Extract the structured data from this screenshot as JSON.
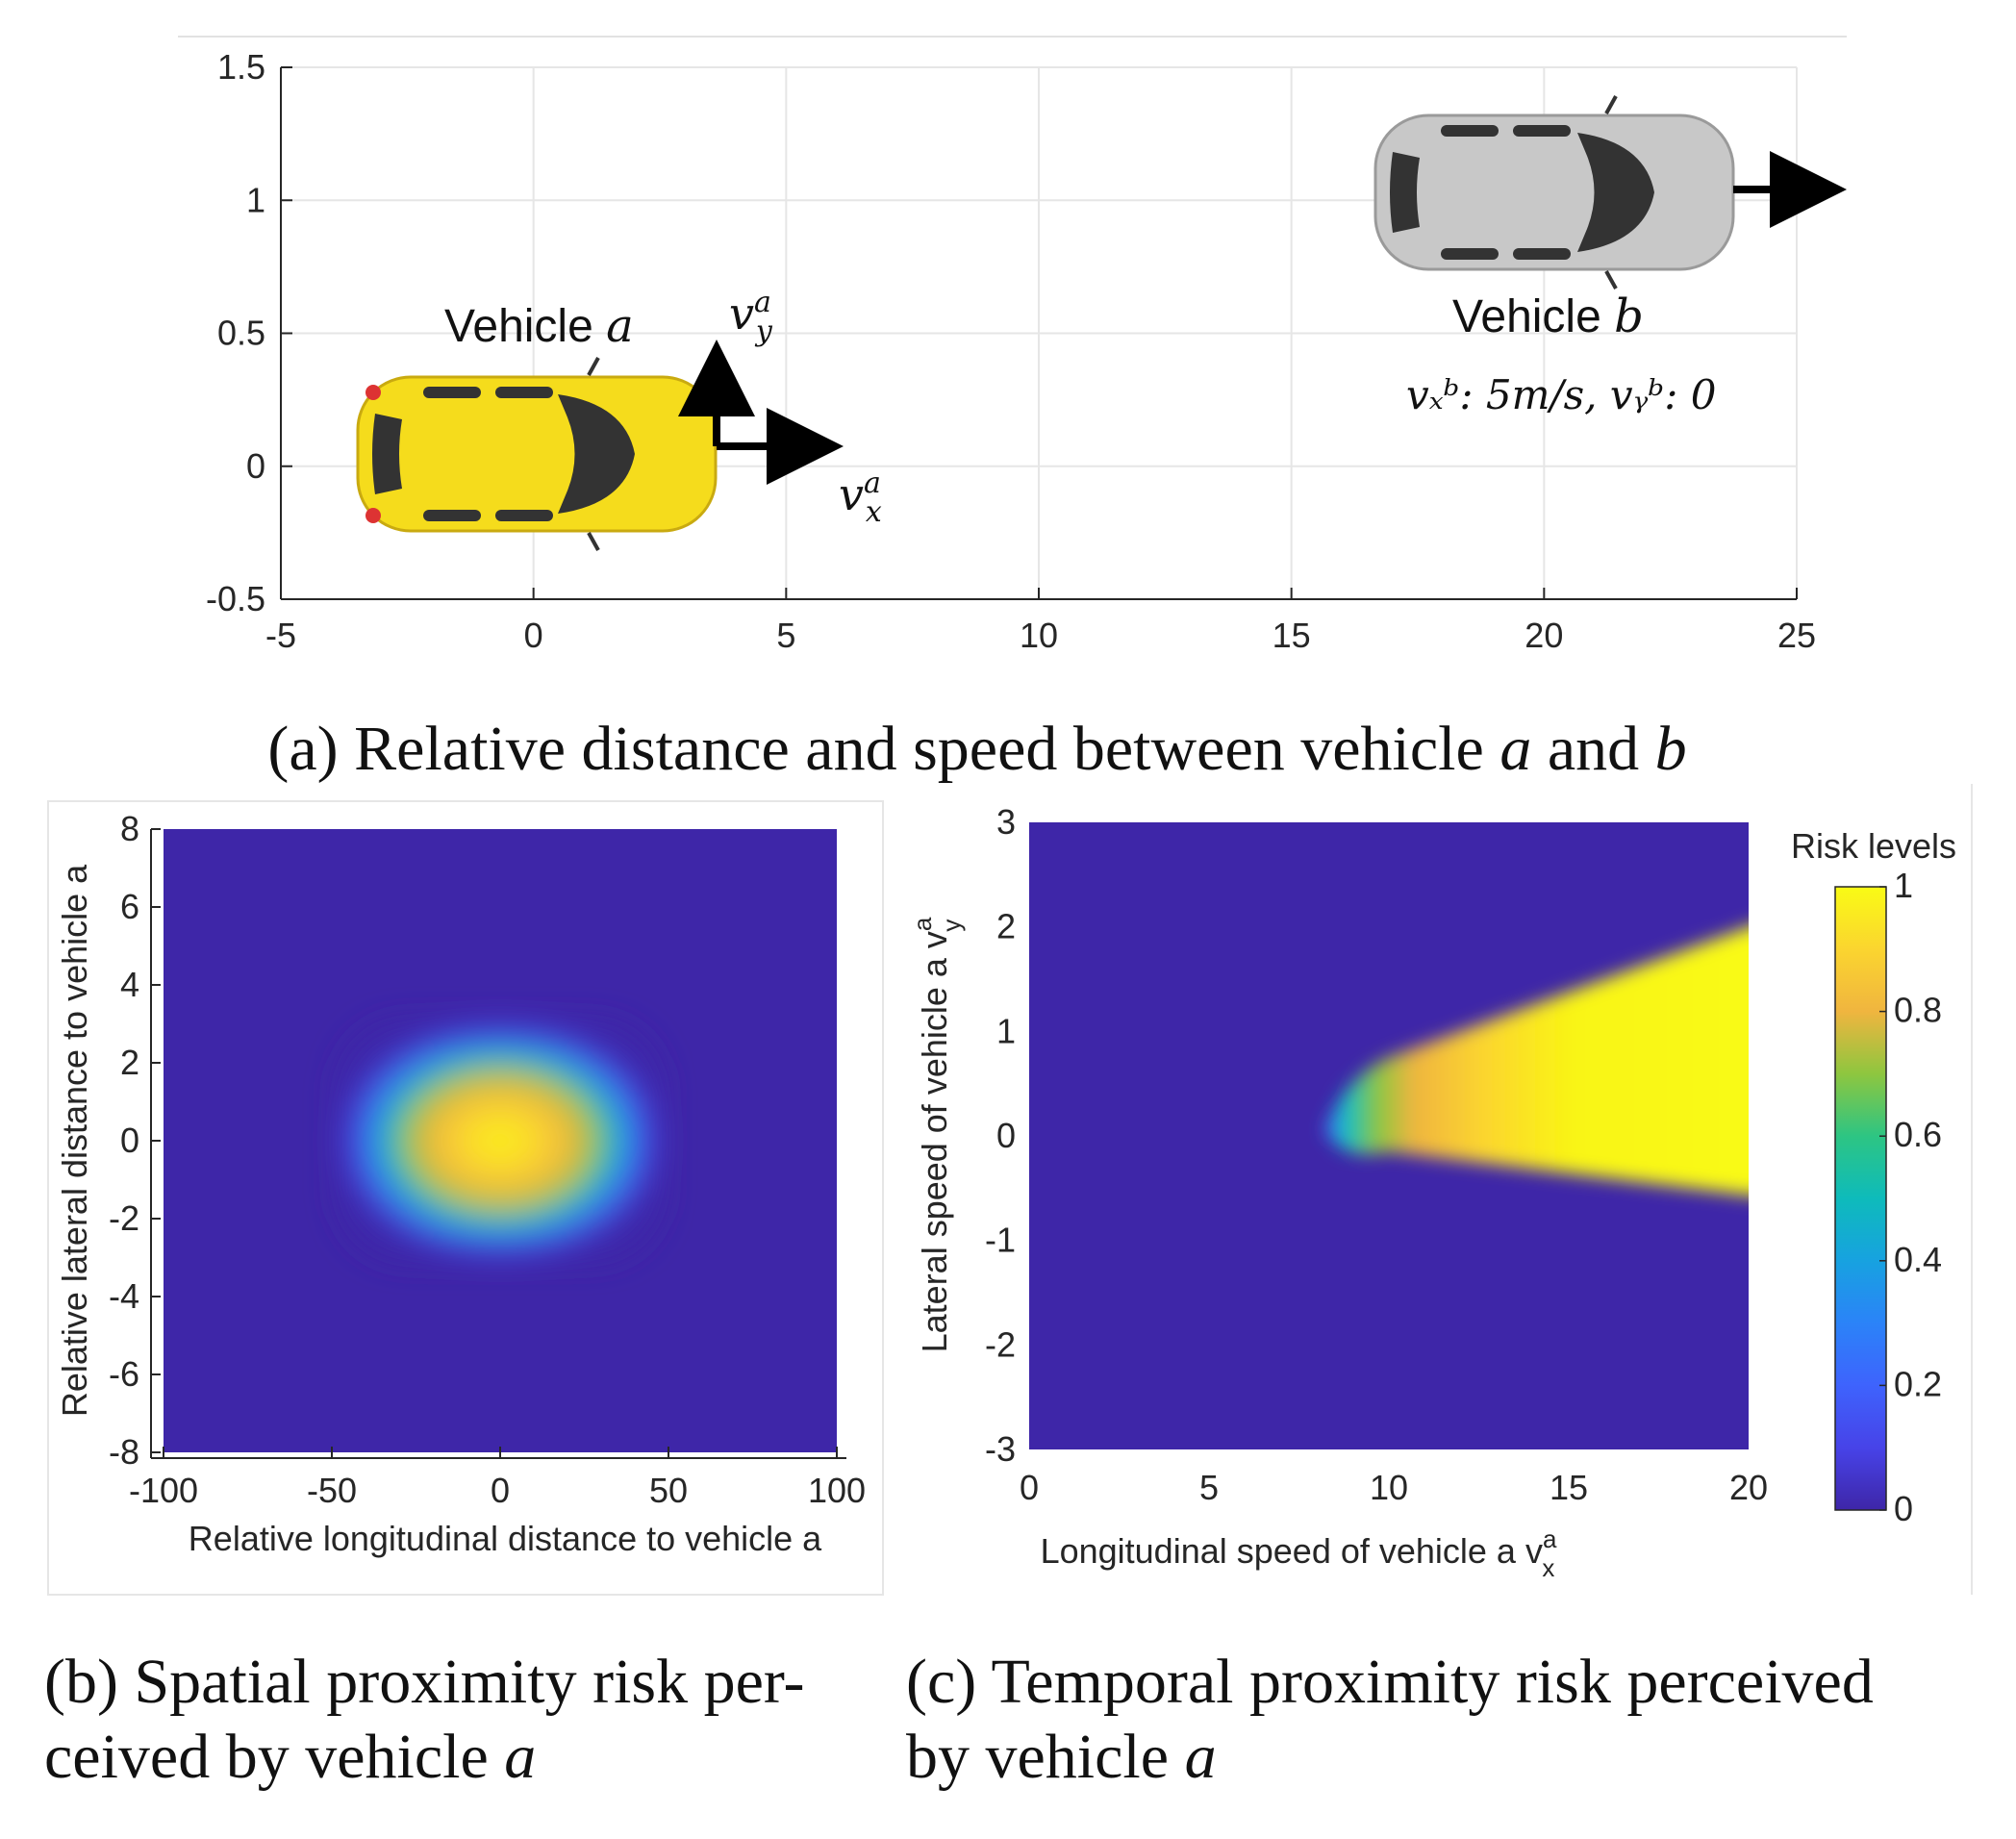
{
  "panel_a": {
    "caption_prefix": "(a) Relative distance and speed between vehicle",
    "caption_var1": "a",
    "caption_mid": "and",
    "caption_var2": "b",
    "vehicle_a_label": "Vehicle",
    "vehicle_a_var": "a",
    "vehicle_b_label": "Vehicle",
    "vehicle_b_var": "b",
    "vel_y_label": "v",
    "vel_y_sup": "a",
    "vel_y_sub": "y",
    "vel_x_label": "v",
    "vel_x_sup": "a",
    "vel_x_sub": "x",
    "vehicle_b_speed": "vₓᵇ: 5m/s, vᵧᵇ: 0",
    "colors": {
      "vehicle_a": "#f5dc1c",
      "vehicle_b": "#c8c8c8",
      "windows": "#333333",
      "arrow": "#000000"
    }
  },
  "panel_b": {
    "caption_line1": "(b) Spatial proximity risk per-",
    "caption_line2_prefix": "ceived by vehicle",
    "caption_var": "a"
  },
  "panel_c": {
    "caption_line1": "(c) Temporal proximity risk perceived",
    "caption_line2_prefix": "by vehicle",
    "caption_var": "a",
    "colorbar_title": "Risk levels"
  },
  "chart_data": [
    {
      "type": "scatter",
      "xlim": [
        -5,
        25
      ],
      "ylim": [
        -0.5,
        1.5
      ],
      "xticks": [
        "-5",
        "0",
        "5",
        "10",
        "15",
        "20",
        "25"
      ],
      "yticks": [
        "-0.5",
        "0",
        "0.5",
        "1",
        "1.5"
      ],
      "grid": true,
      "xlabel": "",
      "ylabel": "",
      "points": [
        {
          "name": "Vehicle a",
          "x": 0,
          "y": 0
        },
        {
          "name": "Vehicle b",
          "x": 20,
          "y": 1
        }
      ]
    },
    {
      "type": "heatmap",
      "xlim": [
        -100,
        100
      ],
      "ylim": [
        -8,
        8
      ],
      "xticks": [
        "-100",
        "-50",
        "0",
        "50",
        "100"
      ],
      "yticks": [
        "-8",
        "-6",
        "-4",
        "-2",
        "0",
        "2",
        "4",
        "6",
        "8"
      ],
      "xlabel": "Relative longitudinal distance to vehicle a",
      "ylabel": "Relative lateral distance to vehicle a",
      "peak": {
        "x": 0,
        "y": 0,
        "value": 0.85
      },
      "high_region": {
        "x": [
          -35,
          35
        ],
        "y": [
          -2,
          2
        ]
      }
    },
    {
      "type": "heatmap",
      "xlim": [
        0,
        20
      ],
      "ylim": [
        -3,
        3
      ],
      "xticks": [
        "0",
        "5",
        "10",
        "15",
        "20"
      ],
      "yticks": [
        "-3",
        "-2",
        "-1",
        "0",
        "1",
        "2",
        "3"
      ],
      "xlabel": "Longitudinal speed of vehicle a v",
      "xlabel_sup": "a",
      "xlabel_sub": "x",
      "ylabel": "Lateral speed of vehicle a v",
      "ylabel_sup": "a",
      "ylabel_sub": "y",
      "high_region_apex": {
        "x": 8.2,
        "y": 0.05
      },
      "high_region_right_edge": {
        "x": 20,
        "y_top": 2.1,
        "y_bottom": -0.6
      },
      "colorbar": {
        "range": [
          0,
          1
        ],
        "ticks": [
          "0",
          "0.2",
          "0.4",
          "0.6",
          "0.8",
          "1"
        ]
      }
    }
  ]
}
